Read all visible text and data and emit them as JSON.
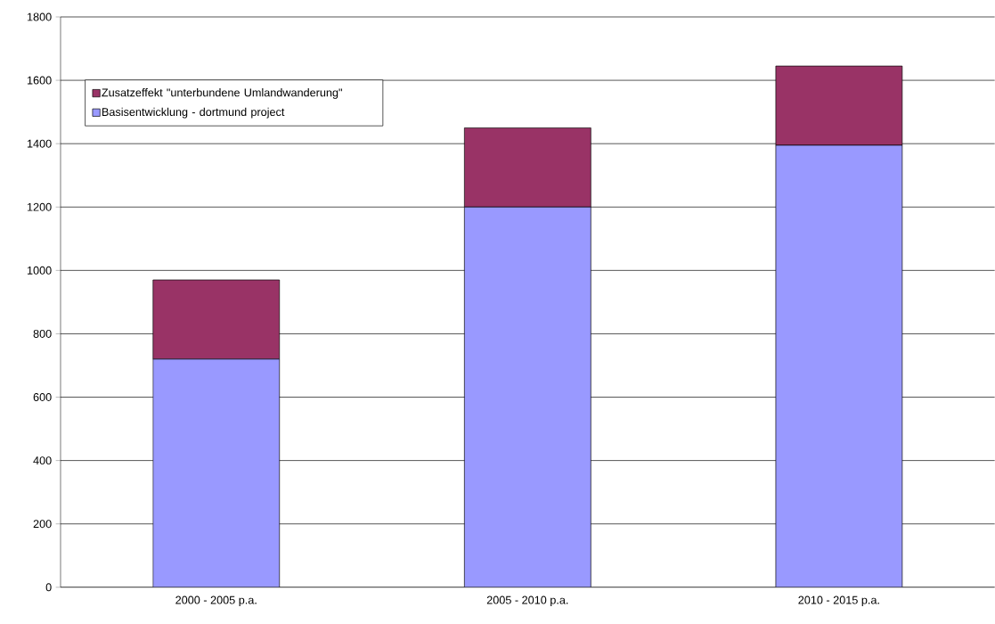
{
  "chart_data": {
    "type": "bar",
    "stacked": true,
    "categories": [
      "2000 - 2005 p.a.",
      "2005 - 2010 p.a.",
      "2010 - 2015 p.a."
    ],
    "series": [
      {
        "name": "Basisentwicklung - dortmund project",
        "color": "#9999ff",
        "values": [
          720,
          1200,
          1395
        ]
      },
      {
        "name": "Zusatzeffekt \"unterbundene Umlandwanderung\"",
        "color": "#993366",
        "values": [
          250,
          250,
          250
        ]
      }
    ],
    "ylim": [
      0,
      1800
    ],
    "yticks": [
      0,
      200,
      400,
      600,
      800,
      1000,
      1200,
      1400,
      1600,
      1800
    ],
    "grid": "y",
    "legend": "top left"
  }
}
